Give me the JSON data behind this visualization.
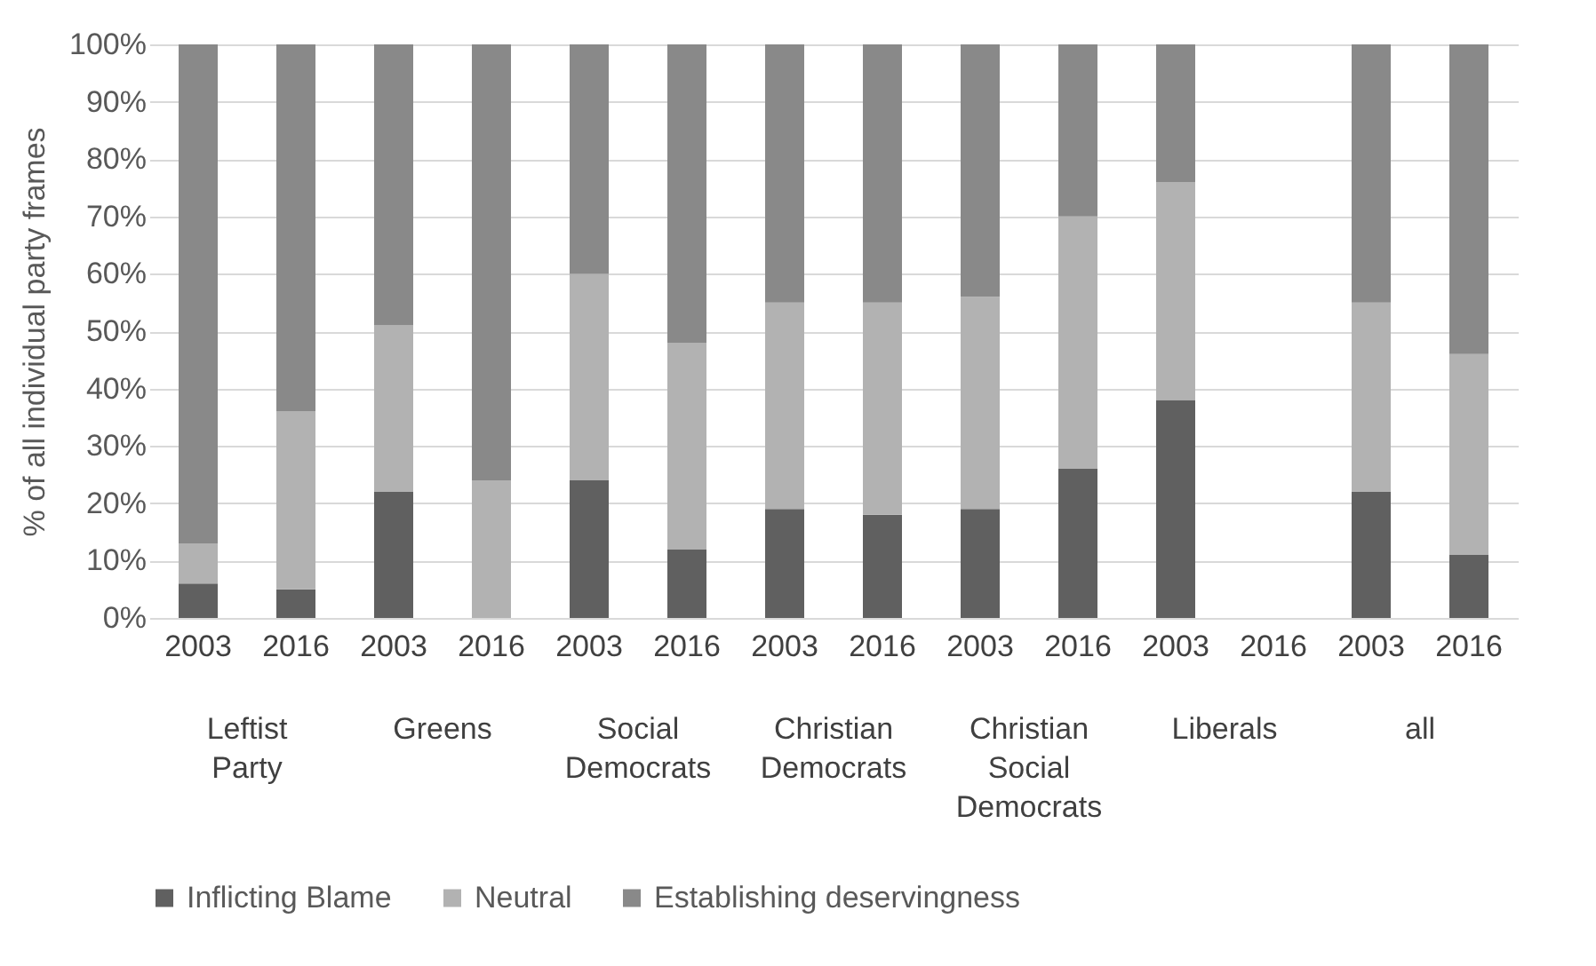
{
  "chart_data": {
    "type": "bar",
    "stacked": true,
    "ylabel": "% of all individual party frames",
    "categories": [
      "2003",
      "2016",
      "2003",
      "2016",
      "2003",
      "2016",
      "2003",
      "2016",
      "2003",
      "2016",
      "2003",
      "2016",
      "2003",
      "2016"
    ],
    "annotations": [
      "Leftist\nParty",
      "Greens",
      "Social\nDemocrats",
      "Christian\nDemocrats",
      "Christian\nSocial\nDemocrats",
      "Liberals",
      "all"
    ],
    "series": [
      {
        "name": "Inflicting Blame",
        "color": "#606060",
        "values": [
          6,
          5,
          22,
          0,
          24,
          12,
          19,
          18,
          19,
          26,
          38,
          null,
          22,
          11
        ]
      },
      {
        "name": "Neutral",
        "color": "#b2b2b2",
        "values": [
          7,
          31,
          29,
          24,
          36,
          36,
          36,
          37,
          37,
          44,
          38,
          null,
          33,
          35
        ]
      },
      {
        "name": "Establishing deservingness",
        "color": "#898989",
        "values": [
          87,
          64,
          49,
          76,
          40,
          52,
          45,
          45,
          44,
          30,
          24,
          null,
          45,
          54
        ]
      }
    ],
    "ylim": [
      0,
      100
    ],
    "yticks": [
      {
        "value": 0,
        "label": "0%"
      },
      {
        "value": 10,
        "label": "10%"
      },
      {
        "value": 20,
        "label": "20%"
      },
      {
        "value": 30,
        "label": "30%"
      },
      {
        "value": 40,
        "label": "40%"
      },
      {
        "value": 50,
        "label": "50%"
      },
      {
        "value": 60,
        "label": "60%"
      },
      {
        "value": 70,
        "label": "70%"
      },
      {
        "value": 80,
        "label": "80%"
      },
      {
        "value": 90,
        "label": "90%"
      },
      {
        "value": 100,
        "label": "100%"
      }
    ],
    "grid": "y",
    "legend": "bottom"
  }
}
